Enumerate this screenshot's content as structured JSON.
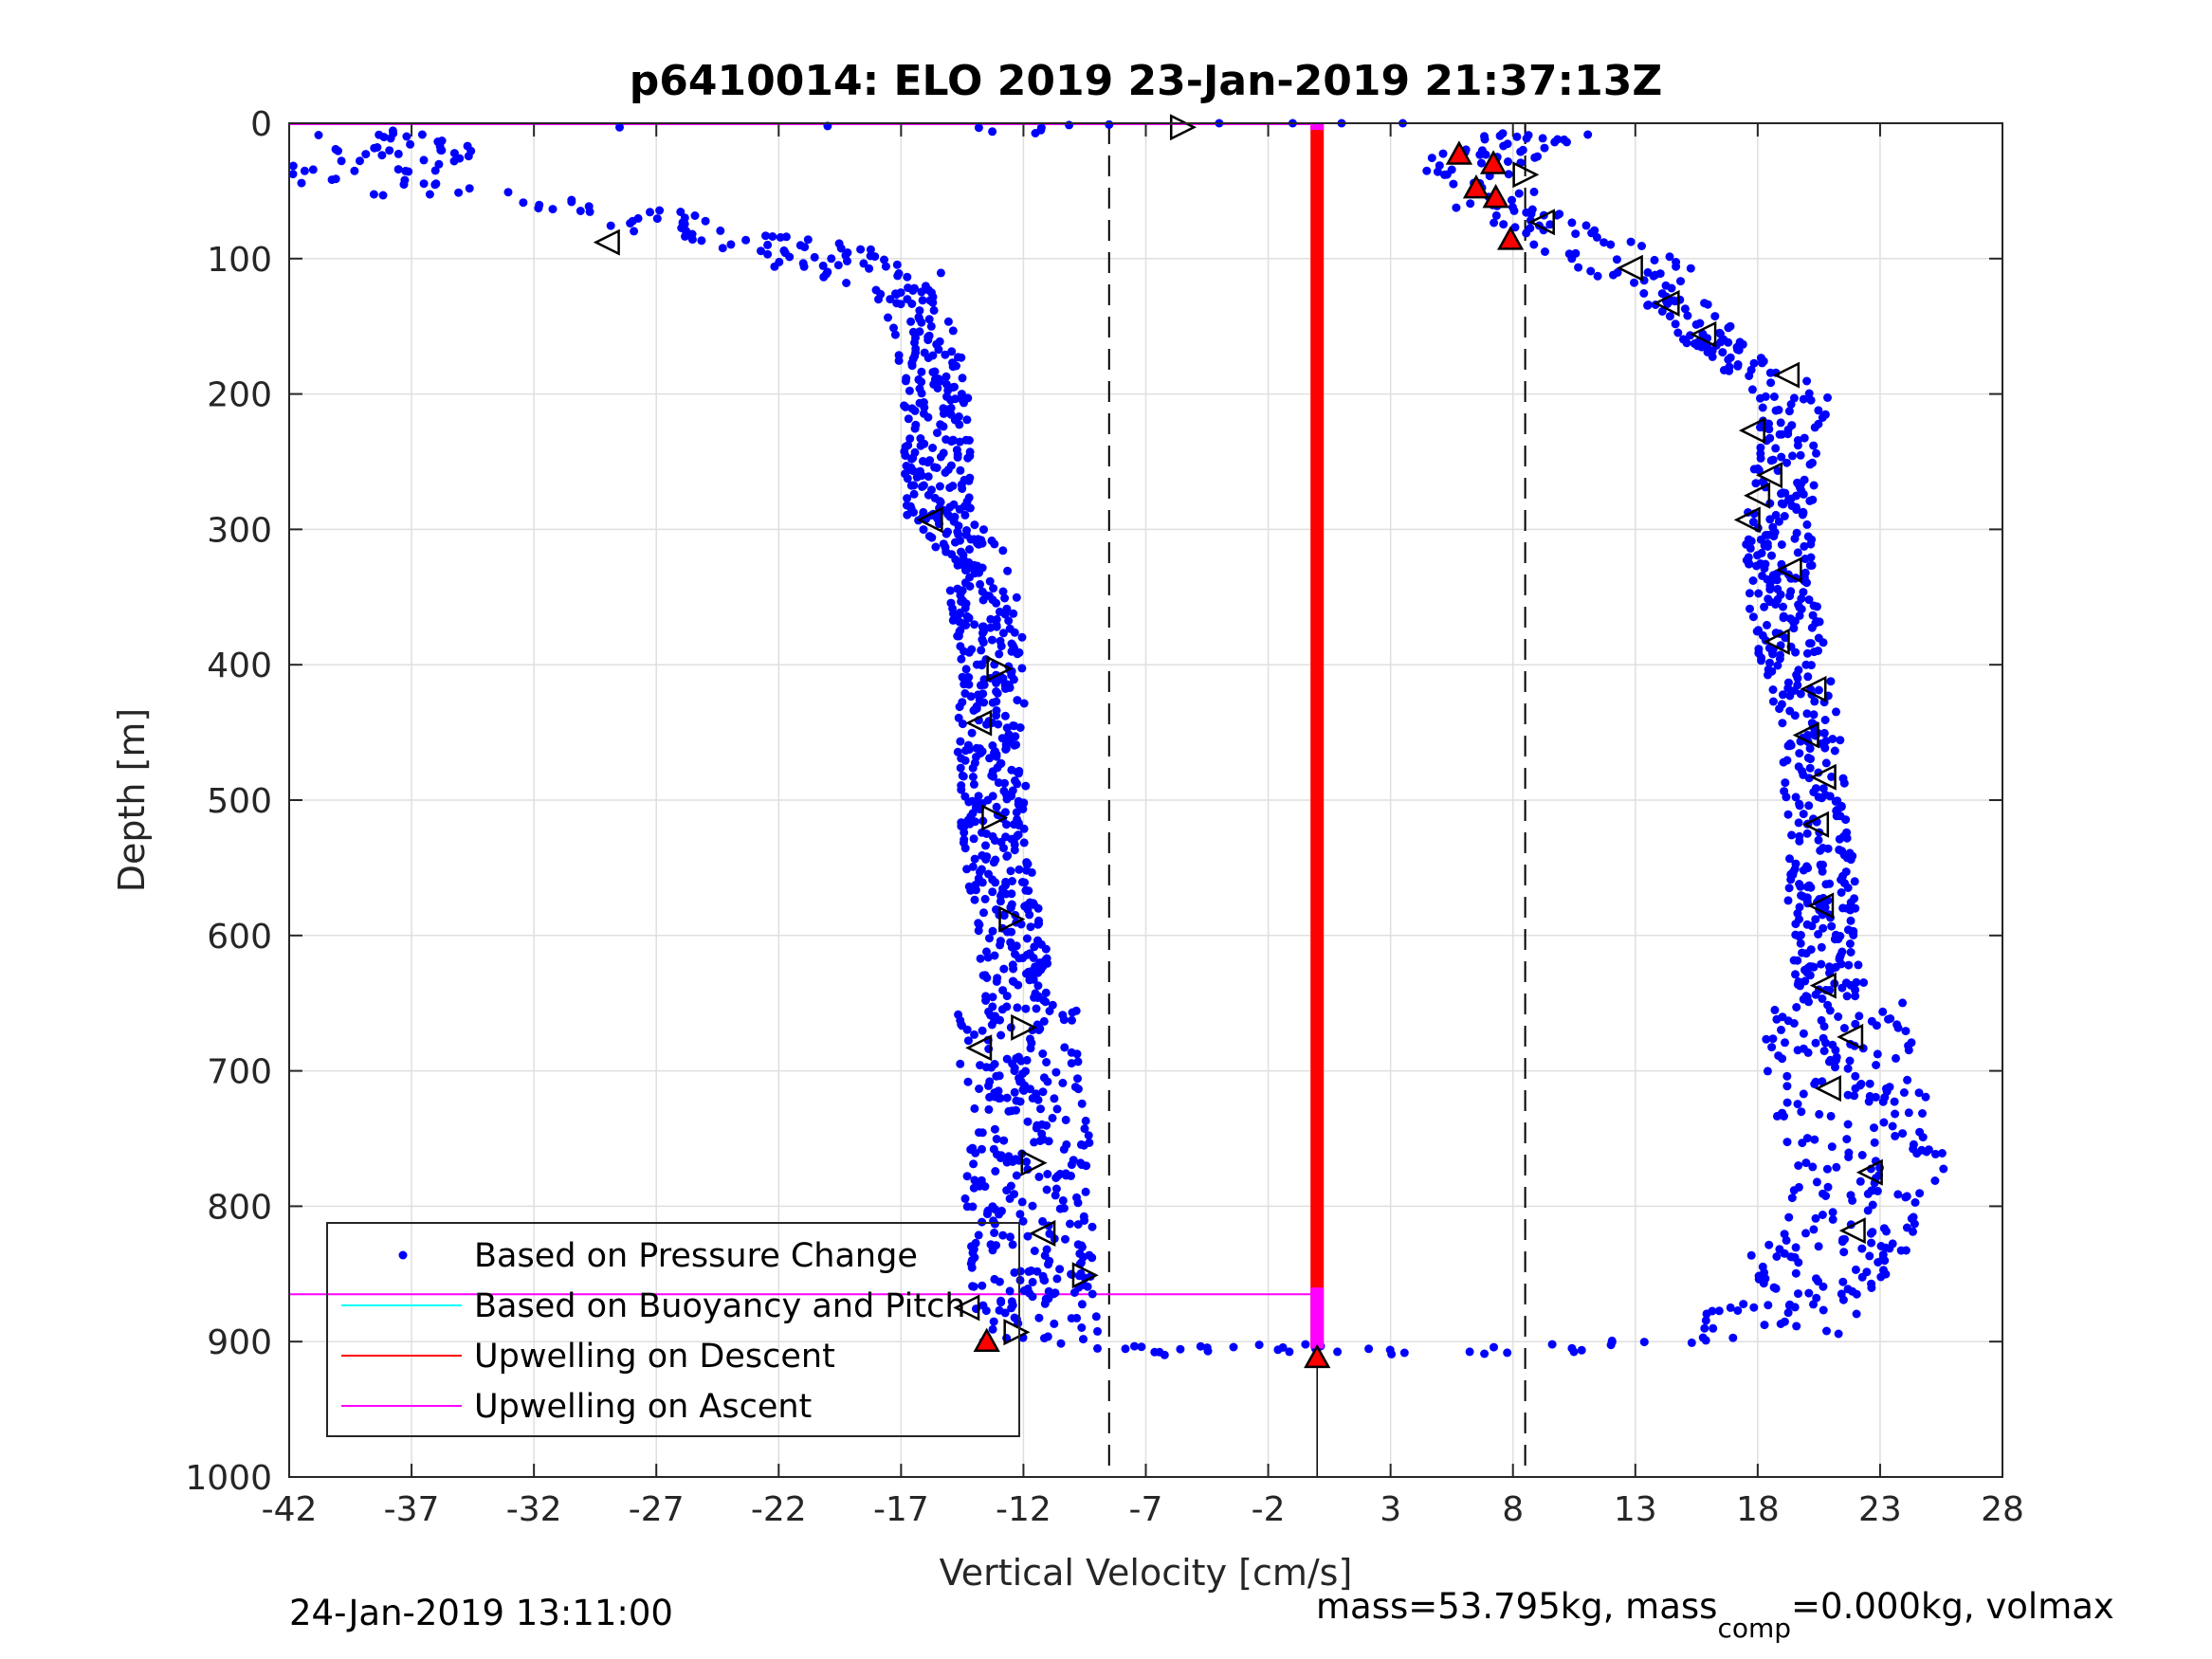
{
  "chart_data": {
    "type": "scatter",
    "title": "p6410014: ELO 2019 23-Jan-2019 21:37:13Z",
    "xlabel": "Vertical Velocity [cm/s]",
    "ylabel": "Depth [m]",
    "xlim": [
      -42,
      28
    ],
    "ylim": [
      0,
      1000
    ],
    "y_reversed": true,
    "grid": true,
    "xticks": [
      -42,
      -37,
      -32,
      -27,
      -22,
      -17,
      -12,
      -7,
      -2,
      3,
      8,
      13,
      18,
      23,
      28
    ],
    "yticks": [
      0,
      100,
      200,
      300,
      400,
      500,
      600,
      700,
      800,
      900,
      1000
    ],
    "x_tick_labels": [
      "-42",
      "-37",
      "-32",
      "-27",
      "-22",
      "-17",
      "-12",
      "-7",
      "-2",
      "3",
      "8",
      "13",
      "18",
      "23",
      "28"
    ],
    "y_tick_labels": [
      "0",
      "100",
      "200",
      "300",
      "400",
      "500",
      "600",
      "700",
      "800",
      "900",
      "1000"
    ],
    "legend_position": "bottom-left",
    "legend": [
      {
        "label": "Based on Pressure Change",
        "style": "dot",
        "color": "#0000ff"
      },
      {
        "label": "Based on Buoyancy and Pitch",
        "style": "line",
        "color": "#00ffff"
      },
      {
        "label": "Upwelling on Descent",
        "style": "line",
        "color": "#ff0000"
      },
      {
        "label": "Upwelling on Ascent",
        "style": "line",
        "color": "#ff00ff"
      }
    ],
    "reference_lines": {
      "dashed_x": [
        -8.5,
        8.5
      ],
      "zero_x": 0,
      "magenta_horizontal_depths": [
        0,
        865
      ]
    },
    "descent_branch_profile": [
      {
        "depth": 5,
        "x": -38
      },
      {
        "depth": 20,
        "x": -37
      },
      {
        "depth": 45,
        "x": -40
      },
      {
        "depth": 60,
        "x": -29
      },
      {
        "depth": 80,
        "x": -26
      },
      {
        "depth": 95,
        "x": -21
      },
      {
        "depth": 110,
        "x": -17.5
      },
      {
        "depth": 150,
        "x": -16.3
      },
      {
        "depth": 200,
        "x": -15.5
      },
      {
        "depth": 250,
        "x": -15.5
      },
      {
        "depth": 290,
        "x": -15.5
      },
      {
        "depth": 320,
        "x": -13.8
      },
      {
        "depth": 400,
        "x": -13.3
      },
      {
        "depth": 470,
        "x": -13.3
      },
      {
        "depth": 540,
        "x": -13.2
      },
      {
        "depth": 600,
        "x": -12.5
      },
      {
        "depth": 650,
        "x": -12.3
      },
      {
        "depth": 700,
        "x": -12.3
      },
      {
        "depth": 750,
        "x": -11.8
      },
      {
        "depth": 800,
        "x": -11.8
      },
      {
        "depth": 850,
        "x": -11.5
      },
      {
        "depth": 895,
        "x": -11.5
      }
    ],
    "ascent_branch_profile": [
      {
        "depth": 895,
        "x": 18.5
      },
      {
        "depth": 860,
        "x": 19.5
      },
      {
        "depth": 820,
        "x": 22
      },
      {
        "depth": 780,
        "x": 22.8
      },
      {
        "depth": 740,
        "x": 22
      },
      {
        "depth": 700,
        "x": 21.5
      },
      {
        "depth": 650,
        "x": 21
      },
      {
        "depth": 600,
        "x": 20.8
      },
      {
        "depth": 550,
        "x": 20.5
      },
      {
        "depth": 500,
        "x": 20.3
      },
      {
        "depth": 450,
        "x": 20
      },
      {
        "depth": 400,
        "x": 19.5
      },
      {
        "depth": 350,
        "x": 19
      },
      {
        "depth": 300,
        "x": 18.8
      },
      {
        "depth": 250,
        "x": 19
      },
      {
        "depth": 200,
        "x": 19.5
      },
      {
        "depth": 160,
        "x": 16
      },
      {
        "depth": 130,
        "x": 14.5
      },
      {
        "depth": 100,
        "x": 12.5
      },
      {
        "depth": 80,
        "x": 9.5
      },
      {
        "depth": 60,
        "x": 7.5
      },
      {
        "depth": 40,
        "x": 6.5
      },
      {
        "depth": 20,
        "x": 7
      },
      {
        "depth": 5,
        "x": 10
      }
    ],
    "bottom_turn_points": [
      {
        "x": -8,
        "depth": 905
      },
      {
        "x": -6,
        "depth": 907
      },
      {
        "x": -4,
        "depth": 906
      },
      {
        "x": -2,
        "depth": 905
      },
      {
        "x": 0,
        "depth": 905
      },
      {
        "x": 3,
        "depth": 908
      },
      {
        "x": 7,
        "depth": 907
      },
      {
        "x": 10,
        "depth": 905
      },
      {
        "x": 13,
        "depth": 902
      },
      {
        "x": 16,
        "depth": 898
      }
    ],
    "surface_points": [
      {
        "x": -28.5,
        "depth": 3
      },
      {
        "x": -20,
        "depth": 2
      },
      {
        "x": -8.5,
        "depth": 1
      },
      {
        "x": -4,
        "depth": 0
      },
      {
        "x": -1,
        "depth": 0
      },
      {
        "x": 1,
        "depth": 0
      },
      {
        "x": 3.5,
        "depth": 0
      }
    ],
    "marker_triangles_hollow": [
      {
        "x": -29,
        "depth": 88,
        "dir": "left"
      },
      {
        "x": -5.5,
        "depth": 3,
        "dir": "right"
      },
      {
        "x": -15.8,
        "depth": 293,
        "dir": "left"
      },
      {
        "x": -13,
        "depth": 403,
        "dir": "right"
      },
      {
        "x": -13.8,
        "depth": 443,
        "dir": "left"
      },
      {
        "x": -13.2,
        "depth": 513,
        "dir": "right"
      },
      {
        "x": -12.5,
        "depth": 588,
        "dir": "right"
      },
      {
        "x": -12,
        "depth": 668,
        "dir": "right"
      },
      {
        "x": -13.8,
        "depth": 683,
        "dir": "left"
      },
      {
        "x": -11.6,
        "depth": 768,
        "dir": "right"
      },
      {
        "x": -11.2,
        "depth": 820,
        "dir": "left"
      },
      {
        "x": -9.5,
        "depth": 851,
        "dir": "right"
      },
      {
        "x": -14.3,
        "depth": 875,
        "dir": "left"
      },
      {
        "x": -12.3,
        "depth": 893,
        "dir": "right"
      },
      {
        "x": 8.5,
        "depth": 38,
        "dir": "right"
      },
      {
        "x": 9.2,
        "depth": 73,
        "dir": "left"
      },
      {
        "x": 12.8,
        "depth": 107,
        "dir": "left"
      },
      {
        "x": 14.3,
        "depth": 133,
        "dir": "left"
      },
      {
        "x": 15.8,
        "depth": 156,
        "dir": "left"
      },
      {
        "x": 19.2,
        "depth": 186,
        "dir": "left"
      },
      {
        "x": 17.8,
        "depth": 227,
        "dir": "left"
      },
      {
        "x": 18.5,
        "depth": 260,
        "dir": "left"
      },
      {
        "x": 18,
        "depth": 275,
        "dir": "left"
      },
      {
        "x": 17.6,
        "depth": 293,
        "dir": "left"
      },
      {
        "x": 19.3,
        "depth": 330,
        "dir": "left"
      },
      {
        "x": 18.8,
        "depth": 383,
        "dir": "left"
      },
      {
        "x": 20.3,
        "depth": 418,
        "dir": "left"
      },
      {
        "x": 20,
        "depth": 452,
        "dir": "left"
      },
      {
        "x": 20.7,
        "depth": 483,
        "dir": "left"
      },
      {
        "x": 20.4,
        "depth": 518,
        "dir": "left"
      },
      {
        "x": 20.6,
        "depth": 578,
        "dir": "left"
      },
      {
        "x": 20.7,
        "depth": 637,
        "dir": "left"
      },
      {
        "x": 21.8,
        "depth": 675,
        "dir": "left"
      },
      {
        "x": 20.9,
        "depth": 713,
        "dir": "left"
      },
      {
        "x": 22.6,
        "depth": 775,
        "dir": "left"
      },
      {
        "x": 21.9,
        "depth": 818,
        "dir": "left"
      }
    ],
    "marker_triangles_red": [
      {
        "x": 5.8,
        "depth": 23
      },
      {
        "x": 7.2,
        "depth": 30
      },
      {
        "x": 6.5,
        "depth": 48
      },
      {
        "x": 7.3,
        "depth": 55
      },
      {
        "x": 7.9,
        "depth": 86
      },
      {
        "x": -13.5,
        "depth": 900
      },
      {
        "x": 0,
        "depth": 912
      }
    ],
    "upwelling_descent_line": {
      "x": 0,
      "depth_from": 0,
      "depth_to": 905
    },
    "upwelling_ascent_segments": [
      {
        "x": 0,
        "depth_from": 0,
        "depth_to": 5
      },
      {
        "x": 0,
        "depth_from": 860,
        "depth_to": 905
      }
    ]
  },
  "footer": {
    "date": "24-Jan-2019 13:11:00",
    "mass_text": "mass=53.795kg, mass",
    "mass_sub": "comp",
    "mass_rest": "=0.000kg, volmax"
  },
  "colors": {
    "dots": "#0000ff",
    "descent": "#ff0000",
    "ascent": "#ff00ff",
    "buoyancy": "#00ffff",
    "grid": "#dfdfdf"
  }
}
